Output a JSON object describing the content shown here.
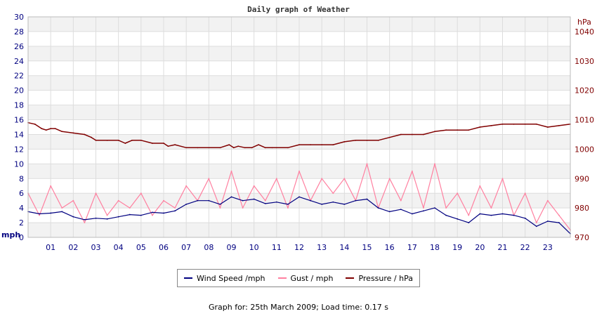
{
  "chart_data": {
    "type": "line",
    "title": "Daily graph of Weather",
    "left_axis": {
      "unit": "mph",
      "ylim": [
        0,
        30
      ],
      "ticks": [
        "0",
        "2",
        "4",
        "6",
        "8",
        "10",
        "12",
        "14",
        "16",
        "18",
        "20",
        "22",
        "24",
        "26",
        "28",
        "30"
      ]
    },
    "right_axis": {
      "unit": "hPa",
      "ylim": [
        970,
        1045
      ],
      "ticks": [
        "970",
        "980",
        "990",
        "1000",
        "1010",
        "1020",
        "1030",
        "1040"
      ]
    },
    "x_ticks": [
      "01",
      "02",
      "03",
      "04",
      "05",
      "06",
      "07",
      "08",
      "09",
      "10",
      "11",
      "12",
      "13",
      "14",
      "15",
      "16",
      "17",
      "18",
      "19",
      "20",
      "21",
      "22",
      "23"
    ],
    "xlim": [
      0,
      24
    ],
    "grid": true,
    "legend_position": "bottom-center",
    "series": [
      {
        "name": "Wind Speed /mph",
        "axis": "left",
        "color": "#000080",
        "x": [
          0,
          0.5,
          1,
          1.5,
          2,
          2.5,
          3,
          3.5,
          4,
          4.5,
          5,
          5.5,
          6,
          6.5,
          7,
          7.5,
          8,
          8.5,
          9,
          9.5,
          10,
          10.5,
          11,
          11.5,
          12,
          12.5,
          13,
          13.5,
          14,
          14.5,
          15,
          15.5,
          16,
          16.5,
          17,
          17.5,
          18,
          18.5,
          19,
          19.5,
          20,
          20.5,
          21,
          21.5,
          22,
          22.5,
          23,
          23.5,
          24
        ],
        "values": [
          3.5,
          3.2,
          3.3,
          3.5,
          2.8,
          2.4,
          2.6,
          2.5,
          2.8,
          3.1,
          3.0,
          3.4,
          3.3,
          3.6,
          4.5,
          5.0,
          5.0,
          4.5,
          5.5,
          5.0,
          5.2,
          4.6,
          4.8,
          4.5,
          5.5,
          5.0,
          4.5,
          4.8,
          4.5,
          5.0,
          5.2,
          4.0,
          3.5,
          3.8,
          3.2,
          3.6,
          4.0,
          3.0,
          2.5,
          2.0,
          3.2,
          3.0,
          3.2,
          3.0,
          2.6,
          1.5,
          2.2,
          2.0,
          0.5
        ]
      },
      {
        "name": "Gust / mph",
        "axis": "left",
        "color": "#ff80a0",
        "x": [
          0,
          0.5,
          1,
          1.5,
          2,
          2.5,
          3,
          3.5,
          4,
          4.5,
          5,
          5.5,
          6,
          6.5,
          7,
          7.5,
          8,
          8.5,
          9,
          9.5,
          10,
          10.5,
          11,
          11.5,
          12,
          12.5,
          13,
          13.5,
          14,
          14.5,
          15,
          15.5,
          16,
          16.5,
          17,
          17.5,
          18,
          18.5,
          19,
          19.5,
          20,
          20.5,
          21,
          21.5,
          22,
          22.5,
          23,
          23.5,
          24
        ],
        "values": [
          6,
          3,
          7,
          4,
          5,
          2,
          6,
          3,
          5,
          4,
          6,
          3,
          5,
          4,
          7,
          5,
          8,
          4,
          9,
          4,
          7,
          5,
          8,
          4,
          9,
          5,
          8,
          6,
          8,
          5,
          10,
          4,
          8,
          5,
          9,
          4,
          10,
          4,
          6,
          3,
          7,
          4,
          8,
          3,
          6,
          2,
          5,
          3,
          1
        ]
      },
      {
        "name": "Pressure / hPa",
        "axis": "right",
        "color": "#800000",
        "x": [
          0,
          0.3,
          0.6,
          0.8,
          1,
          1.2,
          1.5,
          2,
          2.5,
          2.8,
          3,
          3.5,
          4,
          4.3,
          4.6,
          5,
          5.5,
          6,
          6.2,
          6.5,
          7,
          7.5,
          8,
          8.5,
          8.9,
          9.1,
          9.3,
          9.6,
          9.9,
          10.2,
          10.5,
          10.8,
          11,
          11.5,
          12,
          12.5,
          13,
          13.5,
          14,
          14.5,
          15,
          15.5,
          16,
          16.5,
          17,
          17.5,
          18,
          18.5,
          19,
          19.5,
          20,
          20.5,
          21,
          21.5,
          22,
          22.5,
          23,
          23.5,
          24
        ],
        "values": [
          1009,
          1008.5,
          1007,
          1006.5,
          1007,
          1007,
          1006,
          1005.5,
          1005,
          1004,
          1003,
          1003,
          1003,
          1002,
          1003,
          1003,
          1002,
          1002,
          1001,
          1001.5,
          1000.5,
          1000.5,
          1000.5,
          1000.5,
          1001.5,
          1000.5,
          1001,
          1000.5,
          1000.5,
          1001.5,
          1000.5,
          1000.5,
          1000.5,
          1000.5,
          1001.5,
          1001.5,
          1001.5,
          1001.5,
          1002.5,
          1003,
          1003,
          1003,
          1004,
          1005,
          1005,
          1005,
          1006,
          1006.5,
          1006.5,
          1006.5,
          1007.5,
          1008,
          1008.5,
          1008.5,
          1008.5,
          1008.5,
          1007.5,
          1008,
          1008.5
        ]
      }
    ]
  },
  "footer_text": "Graph for: 25th March 2009; Load time: 0.17 s"
}
